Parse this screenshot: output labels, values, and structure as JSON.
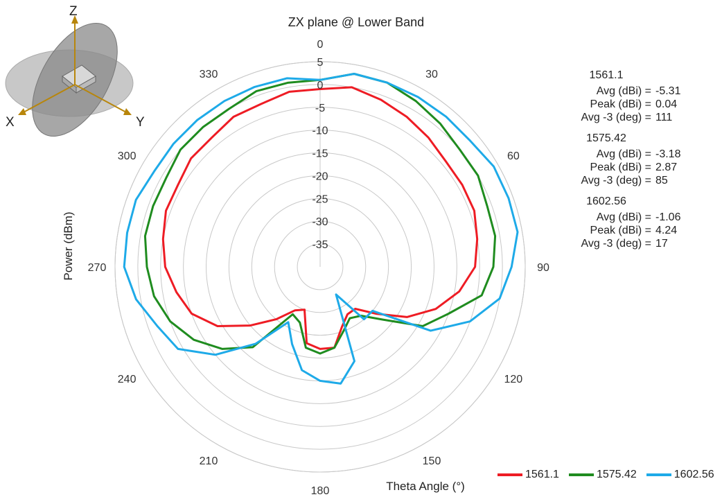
{
  "chart_data": {
    "type": "polar",
    "title": "ZX plane @ Lower Band",
    "radial_label": "Power (dBm)",
    "angular_label": "Theta Angle (°)",
    "radial_range": [
      -40,
      5
    ],
    "radial_ticks": [
      5,
      0,
      -5,
      -10,
      -15,
      -20,
      -25,
      -30,
      -35
    ],
    "angle_ticks": [
      0,
      30,
      60,
      90,
      120,
      150,
      180,
      210,
      240,
      270,
      300,
      330
    ],
    "grid": true,
    "legend_position": "bottom-right",
    "theta": [
      0,
      10,
      20,
      30,
      40,
      50,
      60,
      70,
      80,
      90,
      100,
      110,
      120,
      130,
      140,
      150,
      160,
      170,
      180,
      190,
      200,
      210,
      220,
      230,
      240,
      250,
      260,
      270,
      280,
      290,
      300,
      310,
      320,
      330,
      340,
      350
    ],
    "series": [
      {
        "name": "1561.1",
        "color": "#ee1c24",
        "values": [
          -1,
          0,
          -1,
          -2,
          -3,
          -4,
          -4,
          -4,
          -5,
          -6,
          -9,
          -13,
          -18,
          -24,
          -28,
          -28,
          -26,
          -22,
          -22,
          -23,
          -30,
          -29,
          -25,
          -20,
          -14,
          -10,
          -8,
          -6,
          -5,
          -4,
          -4,
          -3,
          -3,
          -2,
          -2,
          -1
        ]
      },
      {
        "name": "1575.42",
        "color": "#1f8c1f",
        "values": [
          1,
          3,
          3,
          2,
          1,
          0,
          0,
          -1,
          -1,
          -2,
          -4,
          -10,
          -14,
          -22,
          -26,
          -27,
          -25,
          -22,
          -21,
          -22,
          -27,
          -28,
          -17,
          -12,
          -8,
          -5,
          -3,
          -2,
          -1,
          -1,
          -1,
          0,
          0,
          0,
          1,
          1
        ]
      },
      {
        "name": "1602.56",
        "color": "#1eaae8",
        "values": [
          1,
          3,
          3,
          3,
          3,
          3,
          4,
          4,
          4,
          2,
          0,
          -5,
          -12,
          -25,
          -25,
          -33,
          -18,
          -14,
          -15,
          -17,
          -22,
          -26,
          -18,
          -10,
          -4,
          -2,
          1,
          3,
          3,
          3,
          2,
          2,
          2,
          2,
          2,
          2
        ]
      }
    ]
  },
  "stats": [
    {
      "name": "1561.1",
      "rows": [
        {
          "label": "Avg (dBi) =",
          "value": "-5.31"
        },
        {
          "label": "Peak (dBi) =",
          "value": "0.04"
        },
        {
          "label": "Avg -3 (deg) =",
          "value": "111"
        }
      ]
    },
    {
      "name": "1575.42",
      "rows": [
        {
          "label": "Avg (dBi) =",
          "value": "-3.18"
        },
        {
          "label": "Peak (dBi) =",
          "value": "2.87"
        },
        {
          "label": "Avg -3 (deg) =",
          "value": "85"
        }
      ]
    },
    {
      "name": "1602.56",
      "rows": [
        {
          "label": "Avg (dBi) =",
          "value": "-1.06"
        },
        {
          "label": "Peak (dBi) =",
          "value": "4.24"
        },
        {
          "label": "Avg -3 (deg) =",
          "value": "17"
        }
      ]
    }
  ],
  "axes_icon": {
    "x": "X",
    "y": "Y",
    "z": "Z"
  }
}
